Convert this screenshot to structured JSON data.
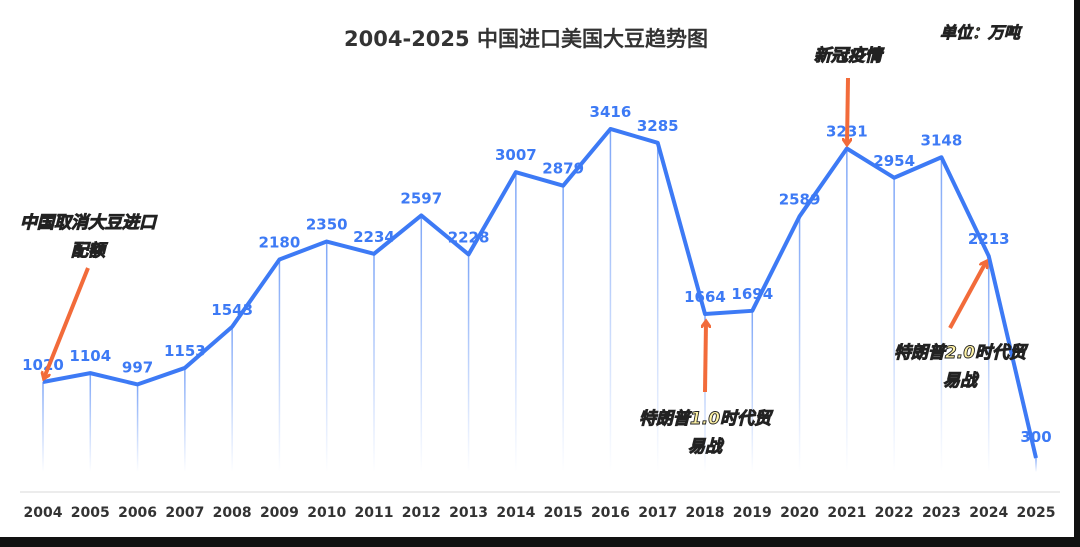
{
  "chart_data": {
    "type": "line",
    "title": "2004-2025 中国进口美国大豆趋势图",
    "unit_label": "单位：万吨",
    "categories": [
      "2004",
      "2005",
      "2006",
      "2007",
      "2008",
      "2009",
      "2010",
      "2011",
      "2012",
      "2013",
      "2014",
      "2015",
      "2016",
      "2017",
      "2018",
      "2019",
      "2020",
      "2021",
      "2022",
      "2023",
      "2024",
      "2025"
    ],
    "values": [
      1020,
      1104,
      997,
      1153,
      1543,
      2180,
      2350,
      2234,
      2597,
      2228,
      3007,
      2879,
      3416,
      3285,
      1664,
      1694,
      2589,
      3231,
      2954,
      3148,
      2213,
      300
    ],
    "ylim": [
      0,
      3600
    ],
    "grid": false,
    "colors": {
      "line": "#3d7af5",
      "label": "#3d7af5",
      "arrow": "#f26b3a",
      "annotation_fill": "#fff3a6",
      "annotation_stroke": "#222222",
      "title": "#333333"
    },
    "annotations": [
      {
        "year": "2004",
        "lines": [
          "中国取消大豆进口",
          "配额"
        ]
      },
      {
        "year": "2018",
        "lines": [
          "特朗普1.0时代贸",
          "易战"
        ]
      },
      {
        "year": "2021",
        "lines": [
          "新冠疫情"
        ]
      },
      {
        "year": "2024",
        "lines": [
          "特朗普2.0时代贸",
          "易战"
        ]
      }
    ]
  }
}
